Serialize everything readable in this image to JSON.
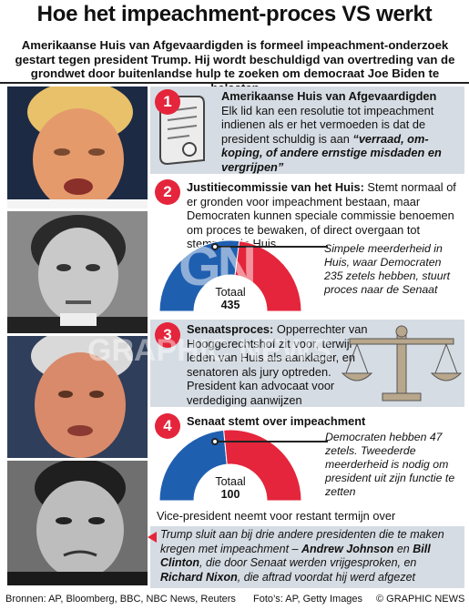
{
  "title": "Hoe het impeachment-proces VS werkt",
  "intro": "Amerikaanse Huis van Afgevaardigden is formeel impeachment-onderzoek gestart tegen president Trump. Hij wordt beschuldigd van overtreding van de grondwet door buitenlandse hulp te zoeken om democraat Joe Biden te belasten",
  "steps": [
    {
      "num": "1",
      "heading": "Amerikaanse Huis van Afgevaardigden",
      "body": "Elk lid kan een resolutie tot impeachment indienen als er het vermoeden is dat de president schuldig is aan",
      "quote": "“verraad, om-koping, of andere ernstige misdaden en vergrijpen”"
    },
    {
      "num": "2",
      "heading": "Justitiecommissie van het Huis:",
      "body": "Stemt normaal of er gronden voor impeachment bestaan, maar Democraten kunnen speciale commissie benoemen om proces te bewaken, of direct overgaan tot stemming in Huis",
      "note": "Simpele meerderheid in Huis, waar Democraten 235 zetels hebben, stuurt proces naar de Senaat",
      "total_label": "Totaal",
      "total_value": "435"
    },
    {
      "num": "3",
      "heading": "Senaatsproces:",
      "body": "Opperrechter van Hooggerechtshof zit voor, terwijl leden van Huis als aanklager, en senatoren als jury optreden. President kan advocaat voor verdediging aanwijzen"
    },
    {
      "num": "4",
      "heading": "Senaat stemt over impeachment",
      "note": "Democraten hebben 47 zetels. Tweederde meerderheid is nodig om president uit zijn functie te zetten",
      "total_label": "Totaal",
      "total_value": "100",
      "footer_line": "Vice-president neemt voor restant termijn over"
    }
  ],
  "closing": {
    "part1": "Trump sluit aan bij drie andere presidenten die te maken kregen met impeachment – ",
    "name1": "Andrew Johnson",
    "part2": " en ",
    "name2": "Bill Clinton",
    "part3": ", die door Senaat werden vrijgesproken, en ",
    "name3": "Richard Nixon",
    "part4": ", die aftrad voordat hij werd afgezet"
  },
  "footer": {
    "sources": "Bronnen: AP, Bloomberg, BBC, NBC News, Reuters",
    "photos": "Foto’s: AP, Getty Images",
    "copyright": "© GRAPHIC NEWS"
  },
  "watermark": {
    "logo": "GN",
    "text": "GRAPHIC NEWS"
  },
  "colors": {
    "democrat_blue": "#1f5fb0",
    "republican_red": "#e4253b",
    "badge_red": "#e4253b",
    "panel_grey": "#d6dce3"
  },
  "house_seats": {
    "democrats": 235,
    "total": 435
  },
  "senate_seats": {
    "democrats": 47,
    "total": 100
  }
}
